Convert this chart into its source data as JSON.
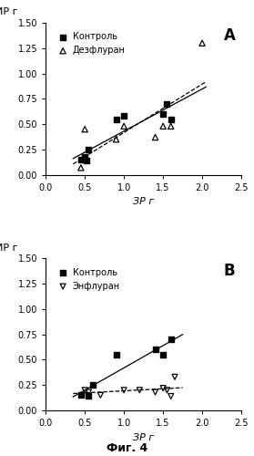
{
  "panel_A": {
    "title": "A",
    "xlabel": "ЗР г",
    "ylabel": "ИР г",
    "xlim": [
      0.0,
      2.5
    ],
    "ylim": [
      0.0,
      1.5
    ],
    "xticks": [
      0.0,
      0.5,
      1.0,
      1.5,
      2.0,
      2.5
    ],
    "yticks": [
      0.0,
      0.25,
      0.5,
      0.75,
      1.0,
      1.25,
      1.5
    ],
    "kontrol_x": [
      0.45,
      0.5,
      0.52,
      0.55,
      0.9,
      1.0,
      1.5,
      1.55,
      1.6
    ],
    "kontrol_y": [
      0.15,
      0.18,
      0.14,
      0.25,
      0.55,
      0.58,
      0.6,
      0.7,
      0.55
    ],
    "dezfluran_x": [
      0.45,
      0.5,
      0.9,
      1.0,
      1.4,
      1.5,
      1.6,
      2.0
    ],
    "dezfluran_y": [
      0.07,
      0.45,
      0.35,
      0.48,
      0.37,
      0.48,
      0.48,
      1.3
    ],
    "line_x_start": 0.35,
    "line_x_end": 2.05,
    "legend": [
      "Контроль",
      "Дезфлуран"
    ]
  },
  "panel_B": {
    "title": "B",
    "xlabel": "ЗР г",
    "ylabel": "ИР г",
    "xlim": [
      0.0,
      2.5
    ],
    "ylim": [
      0.0,
      1.5
    ],
    "xticks": [
      0.0,
      0.5,
      1.0,
      1.5,
      2.0,
      2.5
    ],
    "yticks": [
      0.0,
      0.25,
      0.5,
      0.75,
      1.0,
      1.25,
      1.5
    ],
    "kontrol_x": [
      0.45,
      0.55,
      0.6,
      0.9,
      1.4,
      1.5,
      1.6
    ],
    "kontrol_y": [
      0.15,
      0.14,
      0.25,
      0.55,
      0.6,
      0.55,
      0.7
    ],
    "enfluran_x": [
      0.5,
      0.55,
      0.7,
      1.0,
      1.2,
      1.4,
      1.5,
      1.55,
      1.6,
      1.65
    ],
    "enfluran_y": [
      0.2,
      0.18,
      0.15,
      0.2,
      0.2,
      0.18,
      0.22,
      0.2,
      0.14,
      0.33
    ],
    "line_x_start": 0.35,
    "line_x_end": 1.75,
    "legend": [
      "Контроль",
      "Энфлуран"
    ]
  },
  "fig4_label": "Фиг. 4",
  "bg_color": "#ffffff",
  "text_color": "#000000",
  "font_size": 8,
  "title_font_size": 12
}
